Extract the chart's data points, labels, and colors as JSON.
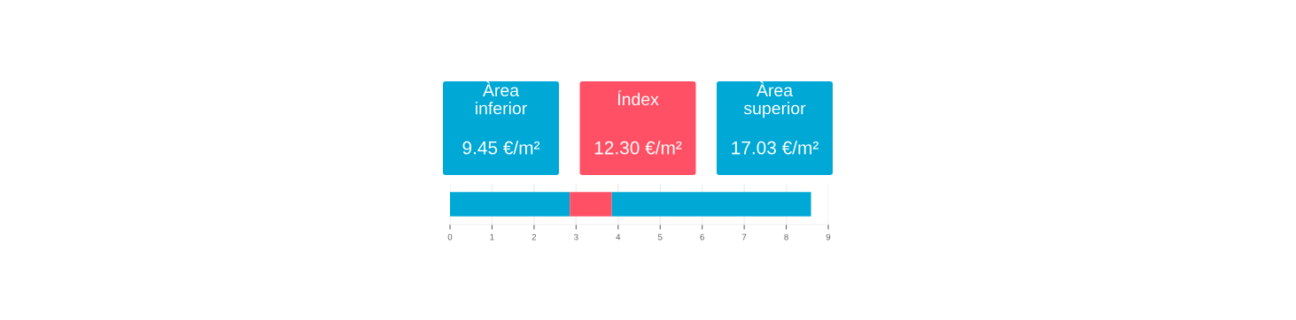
{
  "chart_data": [
    {
      "type": "other",
      "colors": [
        "#00a8d6",
        "#ff5065",
        "#00a8d6"
      ],
      "annotations": [
        "Àrea\ninferior",
        "9.45 €/m²",
        "Índex",
        "12.30 €/m²",
        "Àrea\nsuperior",
        "17.03 €/m²"
      ]
    },
    {
      "type": "bar",
      "orientation": "horizontal",
      "stacked": true,
      "categories": [
        null
      ],
      "series": [
        {
          "color": "#00a8d6",
          "values": [
            2.85
          ]
        },
        {
          "color": "#ff5065",
          "values": [
            1.0
          ]
        },
        {
          "color": "#00a8d6",
          "values": [
            4.74
          ]
        }
      ],
      "xlim": [
        0,
        9
      ],
      "xticks": [
        0,
        1,
        2,
        3,
        4,
        5,
        6,
        7,
        8,
        9
      ],
      "grid": "x",
      "tick_labels": "x"
    }
  ]
}
